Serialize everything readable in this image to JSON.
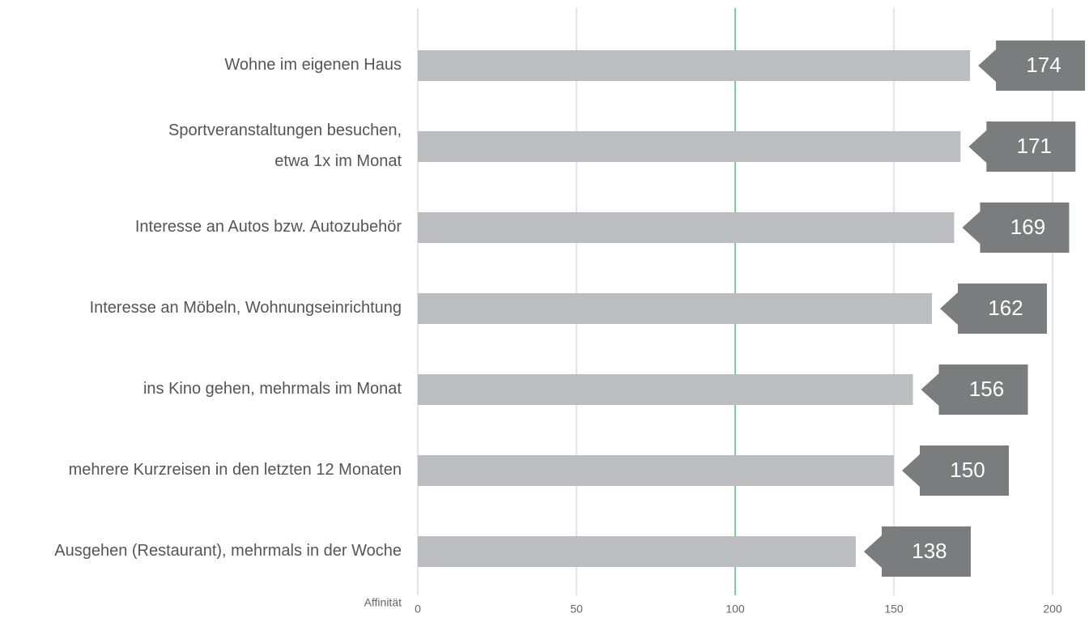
{
  "chart_data": {
    "type": "barh",
    "categories": [
      "Wohne im eigenen Haus",
      "Sportveranstaltungen besuchen,\netwa 1x im Monat",
      "Interesse an Autos bzw. Autozubehör",
      "Interesse an Möbeln, Wohnungseinrichtung",
      "ins Kino gehen, mehrmals im Monat",
      "mehrere Kurzreisen in den letzten 12 Monaten",
      "Ausgehen (Restaurant), mehrmals in der Woche"
    ],
    "values": [
      174,
      171,
      169,
      162,
      156,
      150,
      138
    ],
    "color": "#bcbdc0",
    "label_color": "#7b7c7e",
    "xlabel": "Affinität",
    "xlim": [
      0,
      200
    ],
    "xticks": [
      0,
      50,
      100,
      150,
      200
    ],
    "grid": true,
    "reference_line": 100,
    "reference_color": "#2daa5a"
  }
}
